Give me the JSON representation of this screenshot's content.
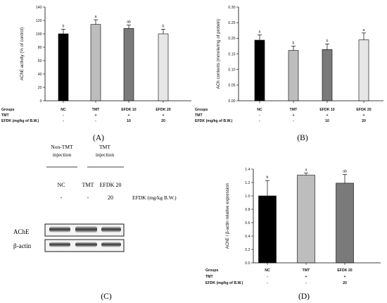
{
  "chart_data": [
    {
      "panel": "(A)",
      "type": "bar",
      "ylabel": "AChE activity (% of control)",
      "ylim": [
        0,
        140
      ],
      "yticks": [
        0,
        20,
        40,
        60,
        80,
        100,
        120,
        140
      ],
      "categories": [
        "NC",
        "TMT",
        "EFDK 10",
        "EFDK 20"
      ],
      "values": [
        100,
        114,
        108,
        100
      ],
      "errors": [
        7,
        7,
        5,
        7
      ],
      "significance": [
        "b",
        "a",
        "ab",
        "b"
      ],
      "colors": [
        "#000000",
        "#bdbdbd",
        "#7a7a7a",
        "#e6e6e6"
      ],
      "table": {
        "rows": [
          {
            "label": "Groups",
            "cells": [
              "NC",
              "TMT",
              "EFDK 10",
              "EFDK 20"
            ]
          },
          {
            "label": "TMT",
            "cells": [
              "-",
              "+",
              "+",
              "+"
            ]
          },
          {
            "label": "EFDK (mg/kg of B.W.)",
            "cells": [
              "-",
              "-",
              "10",
              "20"
            ]
          }
        ]
      }
    },
    {
      "panel": "(B)",
      "type": "bar",
      "ylabel": "ACh contents (mmole/mg of protein)",
      "ylim": [
        0,
        0.3
      ],
      "yticks": [
        "0.00",
        "0.05",
        "0.10",
        "0.15",
        "0.20",
        "0.25",
        "0.30"
      ],
      "categories": [
        "NC",
        "TMT",
        "EFDK 10",
        "EFDK 20"
      ],
      "values": [
        0.194,
        0.161,
        0.164,
        0.195
      ],
      "errors": [
        0.017,
        0.014,
        0.018,
        0.022
      ],
      "significance": [
        "a",
        "b",
        "b",
        "a"
      ],
      "colors": [
        "#000000",
        "#bdbdbd",
        "#7a7a7a",
        "#e6e6e6"
      ],
      "table": {
        "rows": [
          {
            "label": "Groups",
            "cells": [
              "NC",
              "TMT",
              "EFDK 10",
              "EFDK 20"
            ]
          },
          {
            "label": "TMT",
            "cells": [
              "-",
              "+",
              "+",
              "+"
            ]
          },
          {
            "label": "EFDK (mg/kg of B.W.)",
            "cells": [
              "-",
              "-",
              "10",
              "20"
            ]
          }
        ]
      }
    },
    {
      "panel": "(D)",
      "type": "bar",
      "ylabel": "AChE / β-actin relative expression",
      "ylim": [
        0,
        1.4
      ],
      "yticks": [
        "0.0",
        "0.2",
        "0.4",
        "0.6",
        "0.8",
        "1.0",
        "1.2",
        "1.4"
      ],
      "categories": [
        "NC",
        "TMT",
        "EFDK 20"
      ],
      "values": [
        1.0,
        1.31,
        1.19
      ],
      "errors": [
        0.23,
        0.03,
        0.13
      ],
      "significance": [
        "b",
        "a",
        "ab"
      ],
      "colors": [
        "#000000",
        "#bdbdbd",
        "#7a7a7a"
      ],
      "table": {
        "rows": [
          {
            "label": "Groups",
            "cells": [
              "NC",
              "TMT",
              "EFDK 20"
            ]
          },
          {
            "label": "TMT",
            "cells": [
              "-",
              "+",
              "+"
            ]
          },
          {
            "label": "EFDK (mg/kg of B.W.)",
            "cells": [
              "-",
              "-",
              "20"
            ]
          }
        ]
      }
    }
  ],
  "blot": {
    "panel": "(C)",
    "header_nontmt": "Non-TMT injection",
    "header_tmt": "TMT injection",
    "lanes": [
      "NC",
      "TMT",
      "EFDK 20"
    ],
    "efdk_values": [
      "-",
      "-",
      "20"
    ],
    "efdk_label": "EFDK (mg/kg B.W.)",
    "bands": [
      "AChE",
      "β-actin"
    ]
  }
}
